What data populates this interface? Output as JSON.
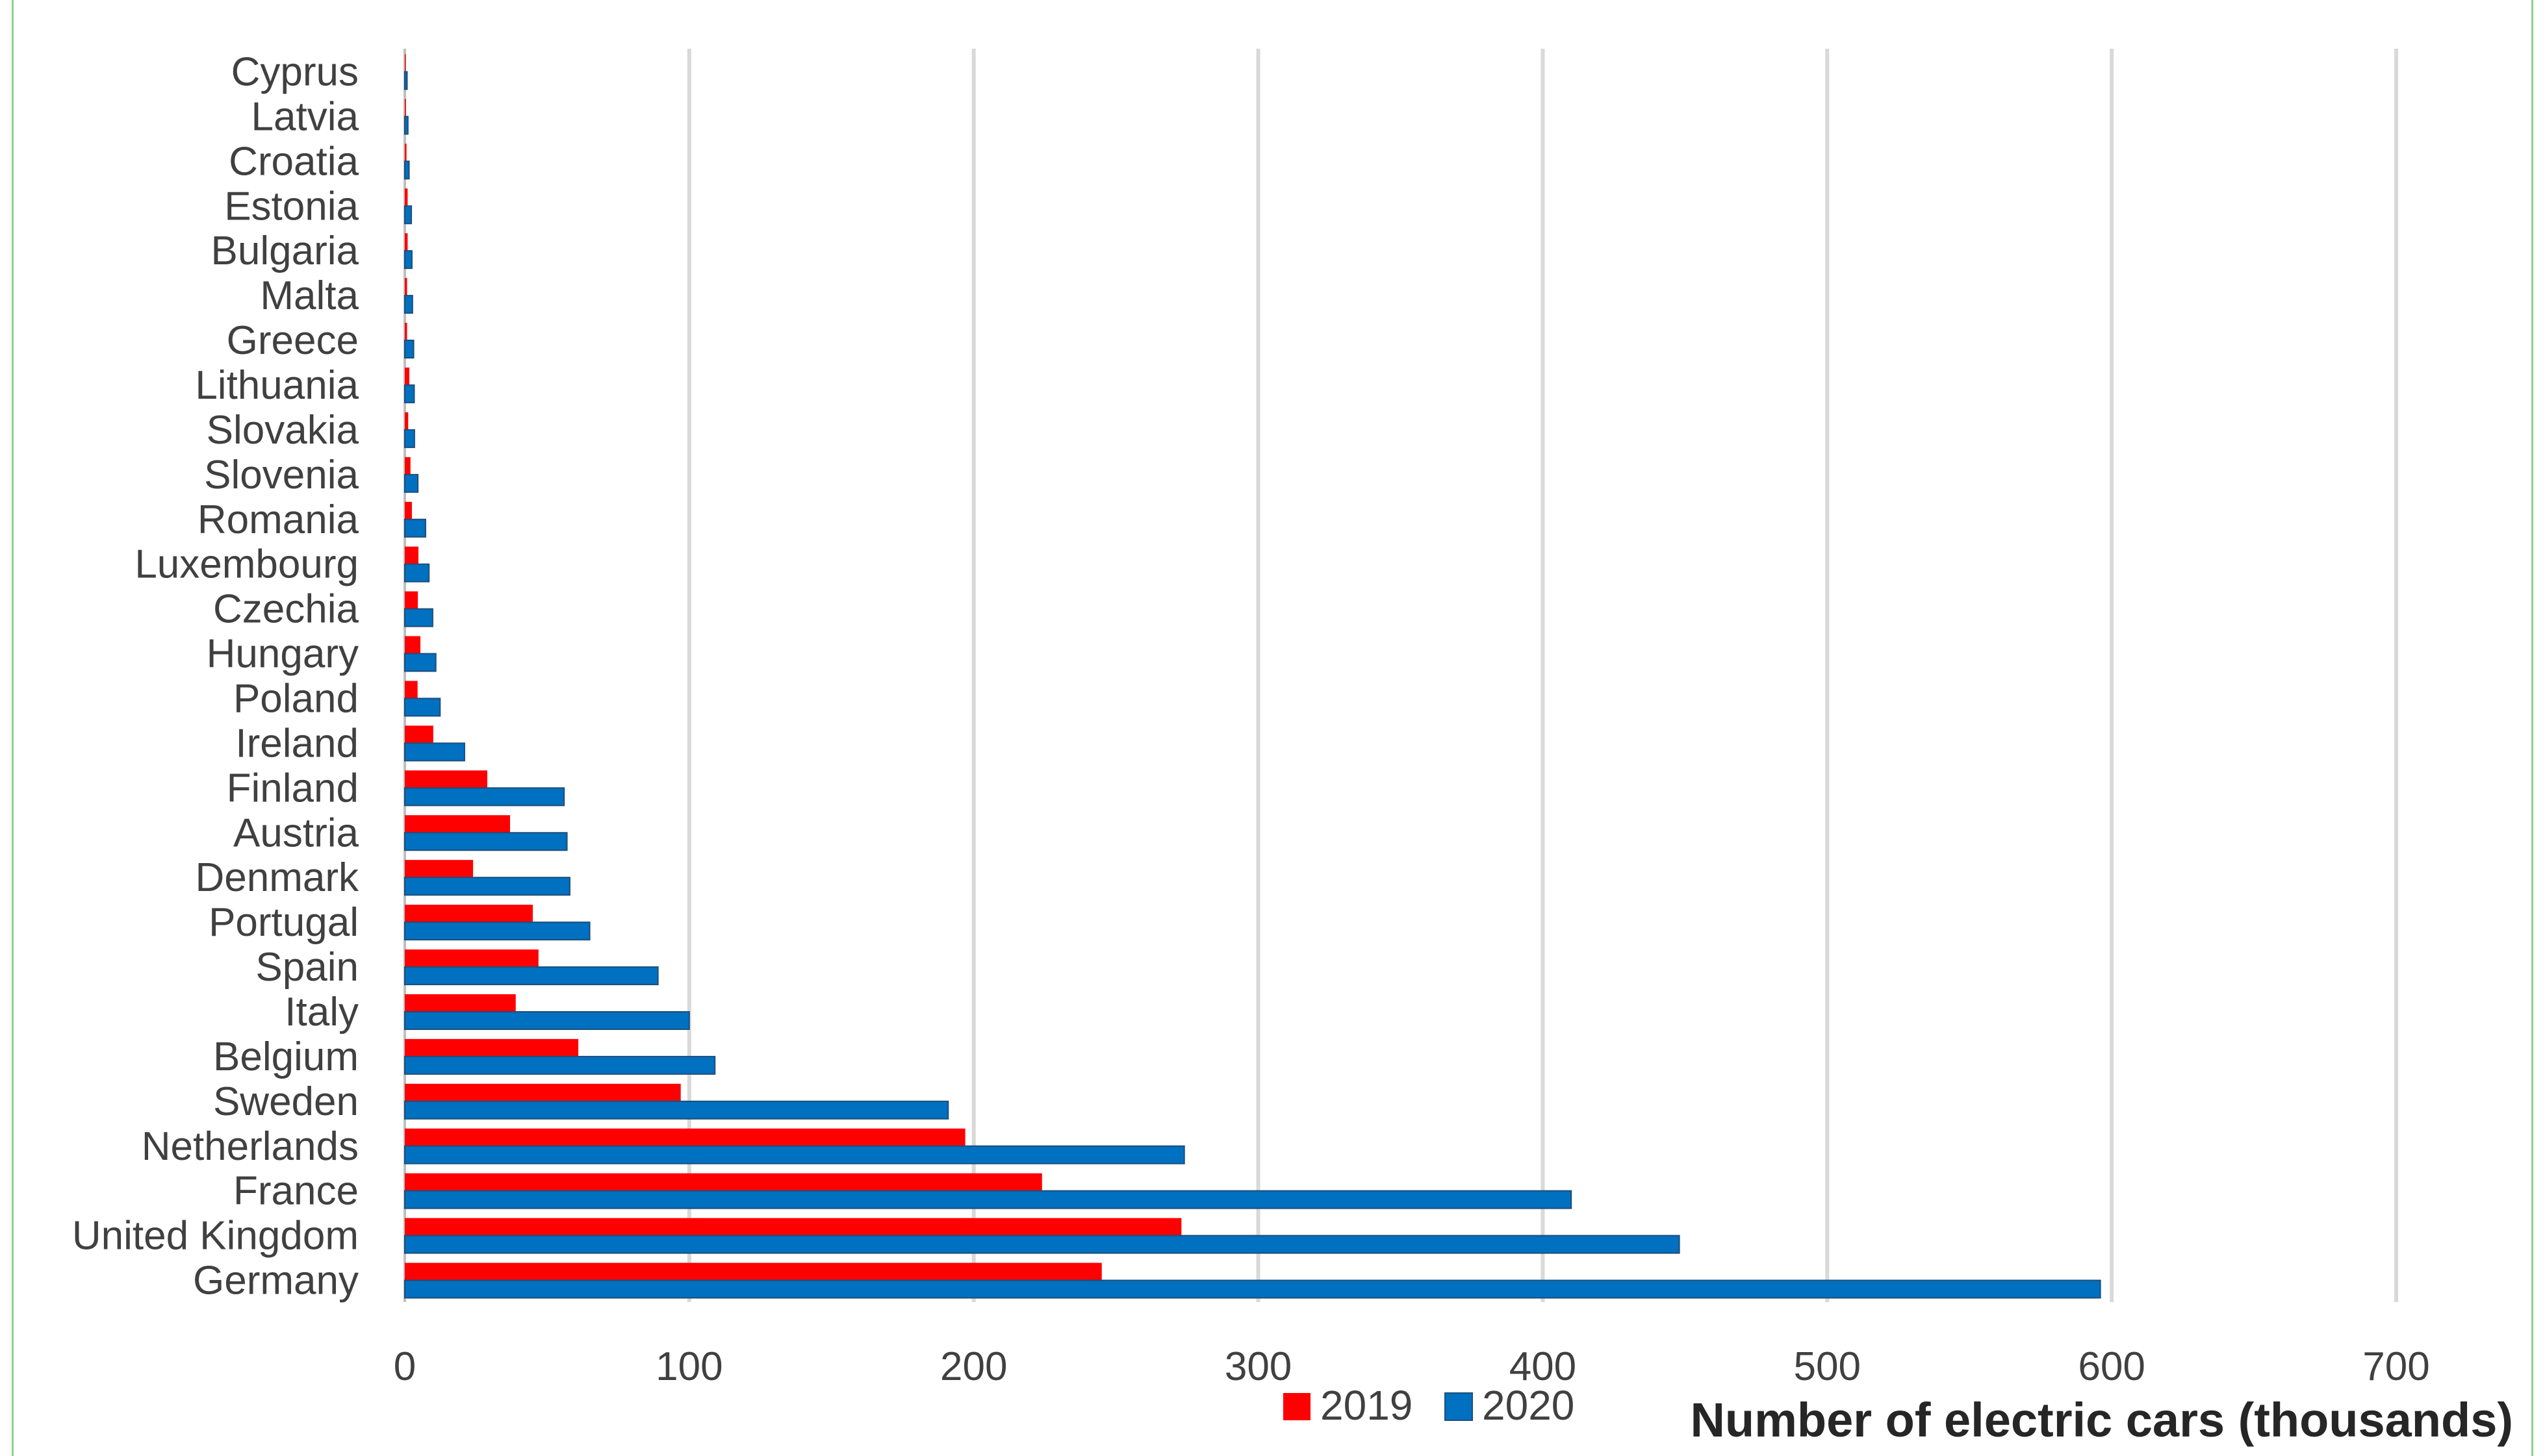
{
  "chart_data": {
    "type": "bar",
    "orientation": "horizontal",
    "xlabel": "Number of electric cars (thousands)",
    "xlim": [
      0,
      700
    ],
    "xticks": [
      0,
      100,
      200,
      300,
      400,
      500,
      600,
      700
    ],
    "grid": true,
    "legend_position": "bottom",
    "categories": [
      "Cyprus",
      "Latvia",
      "Croatia",
      "Estonia",
      "Bulgaria",
      "Malta",
      "Greece",
      "Lithuania",
      "Slovakia",
      "Slovenia",
      "Romania",
      "Luxembourg",
      "Czechia",
      "Hungary",
      "Poland",
      "Ireland",
      "Finland",
      "Austria",
      "Denmark",
      "Portugal",
      "Spain",
      "Italy",
      "Belgium",
      "Sweden",
      "Netherlands",
      "France",
      "United Kingdom",
      "Germany"
    ],
    "series": [
      {
        "name": "2019",
        "color": "#ff0000",
        "values": [
          0.3,
          0.4,
          0.6,
          1.0,
          1.0,
          0.8,
          0.8,
          1.6,
          1.2,
          2.0,
          2.5,
          4.8,
          4.6,
          5.5,
          4.5,
          10,
          29,
          37,
          24,
          45,
          47,
          39,
          61,
          97,
          197,
          224,
          273,
          245
        ]
      },
      {
        "name": "2020",
        "color": "#0070c0",
        "values": [
          0.8,
          1.1,
          1.5,
          2.3,
          2.5,
          2.7,
          3.1,
          3.3,
          3.4,
          4.6,
          7.3,
          8.5,
          9.8,
          10.9,
          12.4,
          21,
          56,
          57,
          58,
          65,
          89,
          100,
          109,
          191,
          274,
          410,
          448,
          596
        ]
      }
    ]
  }
}
